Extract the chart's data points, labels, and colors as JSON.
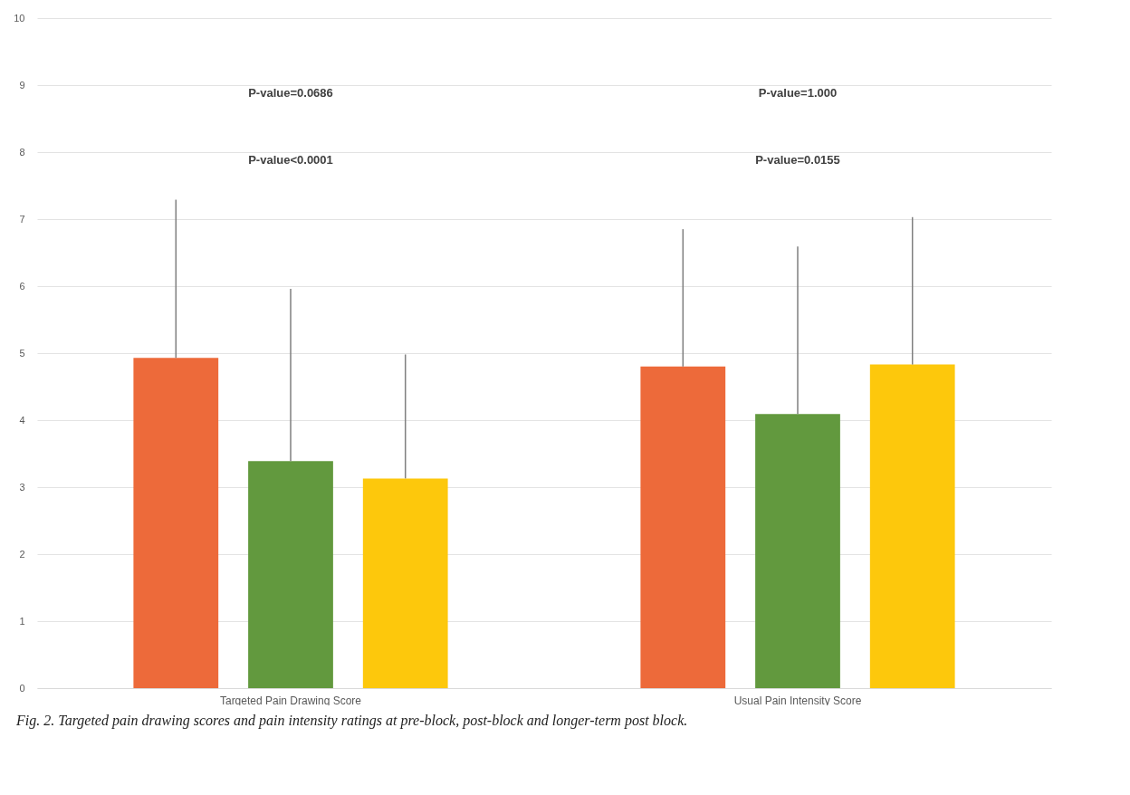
{
  "chart_data": {
    "type": "bar",
    "categories": [
      "Targeted Pain Drawing Score",
      "Usual Pain Intensity Score"
    ],
    "series": [
      {
        "color": "#ed6a3a",
        "values": [
          4.93,
          4.8
        ],
        "errors": [
          [
            4.93,
            7.29
          ],
          [
            4.8,
            6.85
          ]
        ]
      },
      {
        "color": "#62993e",
        "values": [
          3.39,
          4.09
        ],
        "errors": [
          [
            3.39,
            5.96
          ],
          [
            4.09,
            6.59
          ]
        ]
      },
      {
        "color": "#fdc80c",
        "values": [
          3.13,
          4.83
        ],
        "errors": [
          [
            3.13,
            4.98
          ],
          [
            4.83,
            7.03
          ]
        ]
      }
    ],
    "ylim": [
      0,
      10
    ],
    "yticks": [
      0,
      1,
      2,
      3,
      4,
      5,
      6,
      7,
      8,
      9,
      10
    ],
    "grid": "y",
    "legend": false,
    "annotations": [
      "P-value=0.0686",
      "P-value<0.0001",
      "P-value=1.000",
      "P-value=0.0155",
      "Fig. 2. Targeted pain drawing scores and pain intensity ratings at pre-block, post-block and longer-term post block."
    ]
  }
}
